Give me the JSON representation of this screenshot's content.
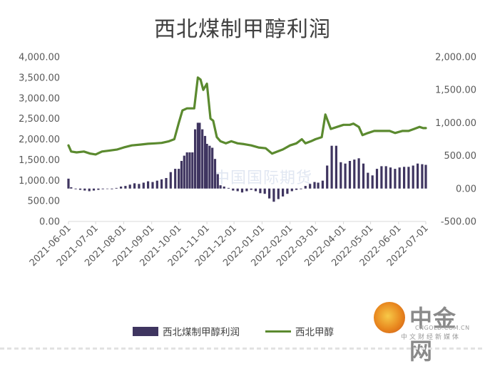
{
  "chart_data": {
    "type": "bar+line",
    "title": "西北煤制甲醇利润",
    "left_axis": {
      "ticks": [
        "4,000.00",
        "3,500.00",
        "3,000.00",
        "2,500.00",
        "2,000.00",
        "1,500.00",
        "1,000.00",
        "500.00",
        "0.00"
      ],
      "ylim": [
        0,
        4000
      ]
    },
    "right_axis": {
      "ticks": [
        "2,000.00",
        "1,500.00",
        "1,000.00",
        "500.00",
        "0.00",
        "-500.00"
      ],
      "ylim": [
        -500,
        2000
      ]
    },
    "x_ticks": [
      "2021-06-01",
      "2021-07-01",
      "2021-08-01",
      "2021-09-01",
      "2021-10-01",
      "2021-11-01",
      "2021-12-01",
      "2022-01-01",
      "2022-02-01",
      "2022-03-01",
      "2022-04-01",
      "2022-05-01",
      "2022-06-01",
      "2022-07-01"
    ],
    "series": [
      {
        "name": "西北煤制甲醇利润",
        "type": "bar",
        "axis": "right",
        "color": "#3f3560",
        "points": [
          [
            "2021-06-01",
            150
          ],
          [
            "2021-06-04",
            20
          ],
          [
            "2021-06-09",
            -10
          ],
          [
            "2021-06-14",
            -20
          ],
          [
            "2021-06-19",
            -30
          ],
          [
            "2021-06-24",
            -40
          ],
          [
            "2021-06-29",
            -30
          ],
          [
            "2021-07-04",
            -20
          ],
          [
            "2021-07-09",
            -10
          ],
          [
            "2021-07-14",
            0
          ],
          [
            "2021-07-19",
            -10
          ],
          [
            "2021-07-24",
            10
          ],
          [
            "2021-07-29",
            30
          ],
          [
            "2021-08-03",
            40
          ],
          [
            "2021-08-08",
            60
          ],
          [
            "2021-08-13",
            80
          ],
          [
            "2021-08-18",
            70
          ],
          [
            "2021-08-23",
            90
          ],
          [
            "2021-08-28",
            110
          ],
          [
            "2021-09-02",
            100
          ],
          [
            "2021-09-07",
            120
          ],
          [
            "2021-09-12",
            140
          ],
          [
            "2021-09-17",
            160
          ],
          [
            "2021-09-22",
            250
          ],
          [
            "2021-09-27",
            300
          ],
          [
            "2021-10-01",
            300
          ],
          [
            "2021-10-04",
            420
          ],
          [
            "2021-10-07",
            500
          ],
          [
            "2021-10-10",
            550
          ],
          [
            "2021-10-13",
            550
          ],
          [
            "2021-10-16",
            550
          ],
          [
            "2021-10-19",
            900
          ],
          [
            "2021-10-22",
            1000
          ],
          [
            "2021-10-24",
            1000
          ],
          [
            "2021-10-27",
            900
          ],
          [
            "2021-10-30",
            800
          ],
          [
            "2021-11-01",
            680
          ],
          [
            "2021-11-04",
            650
          ],
          [
            "2021-11-07",
            620
          ],
          [
            "2021-11-10",
            450
          ],
          [
            "2021-11-13",
            220
          ],
          [
            "2021-11-16",
            50
          ],
          [
            "2021-11-20",
            30
          ],
          [
            "2021-11-25",
            10
          ],
          [
            "2021-11-30",
            -30
          ],
          [
            "2021-12-05",
            -40
          ],
          [
            "2021-12-10",
            -60
          ],
          [
            "2021-12-15",
            -40
          ],
          [
            "2021-12-20",
            -20
          ],
          [
            "2021-12-25",
            -40
          ],
          [
            "2021-12-30",
            -70
          ],
          [
            "2022-01-04",
            -80
          ],
          [
            "2022-01-09",
            -150
          ],
          [
            "2022-01-14",
            -200
          ],
          [
            "2022-01-19",
            -160
          ],
          [
            "2022-01-24",
            -120
          ],
          [
            "2022-01-29",
            -80
          ],
          [
            "2022-02-03",
            -40
          ],
          [
            "2022-02-08",
            -20
          ],
          [
            "2022-02-13",
            -10
          ],
          [
            "2022-02-18",
            40
          ],
          [
            "2022-02-23",
            70
          ],
          [
            "2022-02-28",
            100
          ],
          [
            "2022-03-04",
            90
          ],
          [
            "2022-03-09",
            120
          ],
          [
            "2022-03-14",
            350
          ],
          [
            "2022-03-19",
            650
          ],
          [
            "2022-03-24",
            650
          ],
          [
            "2022-03-29",
            400
          ],
          [
            "2022-04-03",
            380
          ],
          [
            "2022-04-08",
            420
          ],
          [
            "2022-04-13",
            440
          ],
          [
            "2022-04-18",
            460
          ],
          [
            "2022-04-23",
            380
          ],
          [
            "2022-04-28",
            240
          ],
          [
            "2022-05-03",
            200
          ],
          [
            "2022-05-08",
            300
          ],
          [
            "2022-05-13",
            340
          ],
          [
            "2022-05-18",
            340
          ],
          [
            "2022-05-23",
            320
          ],
          [
            "2022-05-28",
            300
          ],
          [
            "2022-06-02",
            320
          ],
          [
            "2022-06-07",
            330
          ],
          [
            "2022-06-12",
            330
          ],
          [
            "2022-06-17",
            350
          ],
          [
            "2022-06-22",
            380
          ],
          [
            "2022-06-27",
            370
          ],
          [
            "2022-07-01",
            360
          ]
        ]
      },
      {
        "name": "西北甲醇",
        "type": "line",
        "axis": "left",
        "color": "#5b8a2f",
        "points": [
          [
            "2021-06-01",
            1850
          ],
          [
            "2021-06-04",
            1700
          ],
          [
            "2021-06-10",
            1680
          ],
          [
            "2021-06-18",
            1700
          ],
          [
            "2021-06-25",
            1650
          ],
          [
            "2021-07-01",
            1630
          ],
          [
            "2021-07-08",
            1700
          ],
          [
            "2021-07-15",
            1720
          ],
          [
            "2021-07-25",
            1750
          ],
          [
            "2021-08-01",
            1800
          ],
          [
            "2021-08-10",
            1850
          ],
          [
            "2021-08-20",
            1870
          ],
          [
            "2021-08-28",
            1890
          ],
          [
            "2021-09-05",
            1900
          ],
          [
            "2021-09-12",
            1910
          ],
          [
            "2021-09-20",
            1950
          ],
          [
            "2021-09-26",
            2000
          ],
          [
            "2021-10-01",
            2400
          ],
          [
            "2021-10-05",
            2700
          ],
          [
            "2021-10-10",
            2750
          ],
          [
            "2021-10-18",
            2750
          ],
          [
            "2021-10-22",
            3500
          ],
          [
            "2021-10-25",
            3450
          ],
          [
            "2021-10-28",
            3200
          ],
          [
            "2021-11-01",
            3350
          ],
          [
            "2021-11-05",
            2500
          ],
          [
            "2021-11-08",
            2450
          ],
          [
            "2021-11-12",
            2050
          ],
          [
            "2021-11-16",
            1950
          ],
          [
            "2021-11-22",
            1900
          ],
          [
            "2021-11-28",
            1950
          ],
          [
            "2021-12-05",
            1900
          ],
          [
            "2021-12-12",
            1880
          ],
          [
            "2021-12-20",
            1850
          ],
          [
            "2021-12-28",
            1800
          ],
          [
            "2022-01-05",
            1780
          ],
          [
            "2022-01-12",
            1650
          ],
          [
            "2022-01-18",
            1700
          ],
          [
            "2022-01-24",
            1750
          ],
          [
            "2022-02-01",
            1850
          ],
          [
            "2022-02-08",
            1900
          ],
          [
            "2022-02-14",
            2000
          ],
          [
            "2022-02-18",
            1900
          ],
          [
            "2022-02-24",
            1950
          ],
          [
            "2022-03-01",
            2000
          ],
          [
            "2022-03-08",
            2050
          ],
          [
            "2022-03-12",
            2600
          ],
          [
            "2022-03-18",
            2250
          ],
          [
            "2022-03-25",
            2300
          ],
          [
            "2022-04-01",
            2350
          ],
          [
            "2022-04-08",
            2350
          ],
          [
            "2022-04-12",
            2380
          ],
          [
            "2022-04-18",
            2300
          ],
          [
            "2022-04-22",
            2100
          ],
          [
            "2022-04-28",
            2150
          ],
          [
            "2022-05-05",
            2200
          ],
          [
            "2022-05-15",
            2200
          ],
          [
            "2022-05-22",
            2200
          ],
          [
            "2022-05-28",
            2150
          ],
          [
            "2022-06-05",
            2200
          ],
          [
            "2022-06-12",
            2200
          ],
          [
            "2022-06-18",
            2250
          ],
          [
            "2022-06-24",
            2300
          ],
          [
            "2022-06-28",
            2270
          ],
          [
            "2022-07-01",
            2270
          ]
        ]
      }
    ],
    "legend_position": "bottom",
    "grid": false
  },
  "legend": {
    "bar_label": "西北煤制甲醇利润",
    "line_label": "西北甲醇"
  },
  "watermark": "中国国际期货",
  "logo": {
    "name": "中金网",
    "domain": "CNGOLD.COM.CN",
    "sub": "中文财经新媒体"
  },
  "colors": {
    "bar": "#3f3560",
    "line": "#5b8a2f",
    "text": "#595959"
  }
}
